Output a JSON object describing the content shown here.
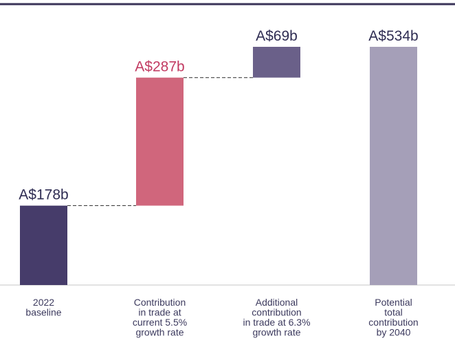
{
  "chart_data": {
    "type": "waterfall",
    "title": "",
    "xlabel": "",
    "ylabel": "",
    "ylim": [
      0,
      600
    ],
    "grid": false,
    "categories": [
      [
        "2022",
        "baseline"
      ],
      [
        "Contribution",
        "in trade at",
        "current 5.5%",
        "growth rate"
      ],
      [
        "Additional",
        "contribution",
        "in trade at 6.3%",
        "growth rate"
      ],
      [
        "Potential",
        "total",
        "contribution",
        "by 2040"
      ]
    ],
    "bars": [
      {
        "start": 0,
        "end": 178,
        "label": "A$178b",
        "color": "#463c6a",
        "label_color": "#2e2c52"
      },
      {
        "start": 178,
        "end": 465,
        "label": "A$287b",
        "color": "#d0667c",
        "label_color": "#c23b62"
      },
      {
        "start": 465,
        "end": 534,
        "label": "A$69b",
        "color": "#6a6089",
        "label_color": "#2e2c52"
      },
      {
        "start": 0,
        "end": 534,
        "label": "A$534b",
        "color": "#a59fb8",
        "label_color": "#2e2c52"
      }
    ],
    "connectors": [
      [
        0,
        1
      ],
      [
        1,
        2
      ]
    ]
  }
}
